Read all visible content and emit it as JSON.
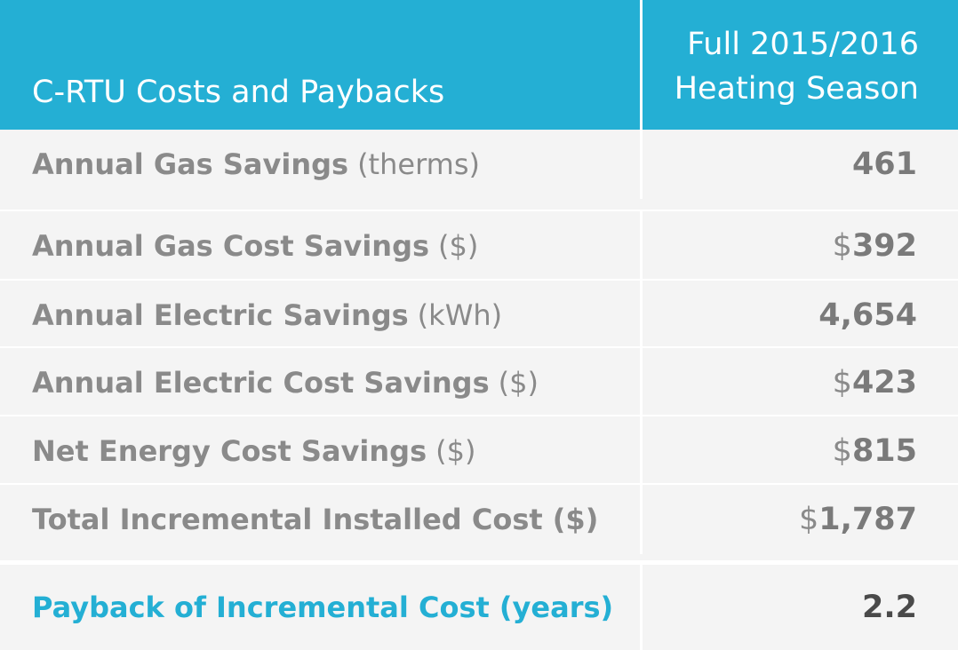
{
  "header": {
    "title": "C-RTU Costs and Paybacks",
    "column_line1": "Full 2015/2016",
    "column_line2": "Heating Season"
  },
  "rows": [
    {
      "label": "Annual Gas Savings",
      "unit": "(therms)",
      "currency": "",
      "value": "461"
    },
    {
      "label": "Annual Gas Cost Savings",
      "unit": "($)",
      "currency": "$",
      "value": "392"
    },
    {
      "label": "Annual Electric Savings",
      "unit": "(kWh)",
      "currency": "",
      "value": "4,654"
    },
    {
      "label": "Annual Electric Cost Savings",
      "unit": "($)",
      "currency": "$",
      "value": "423"
    },
    {
      "label": "Net Energy Cost Savings",
      "unit": "($)",
      "currency": "$",
      "value": "815"
    },
    {
      "label": "Total Incremental Installed Cost ($)",
      "unit": "",
      "currency": "$",
      "value": "1,787"
    }
  ],
  "payback": {
    "label": "Payback of Incremental Cost (years)",
    "value": "2.2"
  },
  "colors": {
    "header_bg": "#24afd4",
    "row_bg": "#f4f4f4",
    "label_text": "#8a8a8a",
    "payback_label": "#24afd4",
    "payback_value": "#4a4a4a"
  }
}
